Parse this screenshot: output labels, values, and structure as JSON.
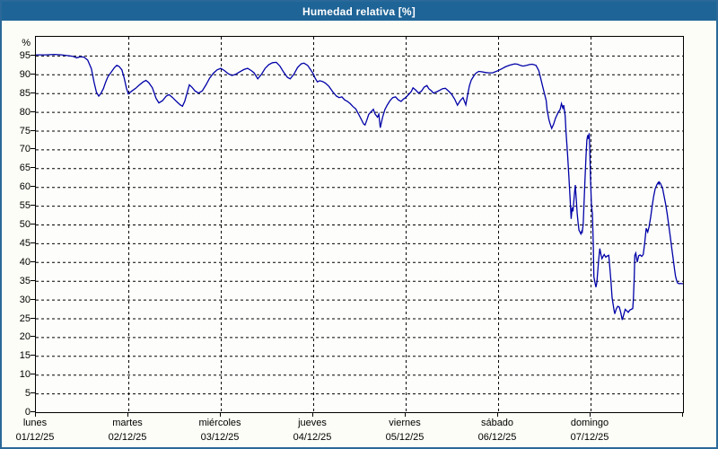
{
  "window": {
    "title": "Humedad relativa [%]"
  },
  "colors": {
    "titlebar_bg": "#1e6497",
    "titlebar_text": "#ffffff",
    "window_border": "#2a6999",
    "window_bg": "#fcfdf6",
    "plot_bg": "#fdfefb",
    "plot_border": "#000000",
    "grid": "#000000",
    "line": "#0000a8",
    "tick_text": "#000000"
  },
  "chart_data": {
    "type": "line",
    "title": "Humedad relativa [%]",
    "ylabel": "%",
    "y_unit_label": "%",
    "ylim": [
      0,
      100
    ],
    "x_days": 7,
    "grid": "dashed",
    "legend": "none",
    "y_ticks": [
      95,
      90,
      85,
      80,
      75,
      70,
      65,
      60,
      55,
      50,
      45,
      40,
      35,
      30,
      25,
      20,
      15,
      10,
      5,
      0
    ],
    "x_ticks": [
      {
        "day": "lunes",
        "date": "01/12/25"
      },
      {
        "day": "martes",
        "date": "02/12/25"
      },
      {
        "day": "miércoles",
        "date": "03/12/25"
      },
      {
        "day": "jueves",
        "date": "04/12/25"
      },
      {
        "day": "viernes",
        "date": "05/12/25"
      },
      {
        "day": "sábado",
        "date": "06/12/25"
      },
      {
        "day": "domingo",
        "date": "07/12/25"
      }
    ],
    "series": [
      {
        "name": "Humedad relativa",
        "x_unit": "days_since_2025-12-01",
        "y_unit": "%",
        "points": [
          [
            0.0,
            95.2
          ],
          [
            0.1,
            95.2
          ],
          [
            0.2,
            95.3
          ],
          [
            0.28,
            95.2
          ],
          [
            0.34,
            95.0
          ],
          [
            0.4,
            94.8
          ],
          [
            0.44,
            94.4
          ],
          [
            0.48,
            94.7
          ],
          [
            0.52,
            94.6
          ],
          [
            0.56,
            93.8
          ],
          [
            0.6,
            91.5
          ],
          [
            0.63,
            87.8
          ],
          [
            0.655,
            85.2
          ],
          [
            0.68,
            84.2
          ],
          [
            0.7,
            84.8
          ],
          [
            0.73,
            86.2
          ],
          [
            0.755,
            88.0
          ],
          [
            0.78,
            89.4
          ],
          [
            0.82,
            90.8
          ],
          [
            0.85,
            91.8
          ],
          [
            0.875,
            92.4
          ],
          [
            0.9,
            92.1
          ],
          [
            0.93,
            91.2
          ],
          [
            0.955,
            89.0
          ],
          [
            0.98,
            86.3
          ],
          [
            1.0,
            84.8
          ],
          [
            1.04,
            85.6
          ],
          [
            1.08,
            86.3
          ],
          [
            1.12,
            87.2
          ],
          [
            1.16,
            88.0
          ],
          [
            1.19,
            88.4
          ],
          [
            1.22,
            87.8
          ],
          [
            1.26,
            86.4
          ],
          [
            1.3,
            83.6
          ],
          [
            1.33,
            82.4
          ],
          [
            1.37,
            83.0
          ],
          [
            1.41,
            84.2
          ],
          [
            1.44,
            84.6
          ],
          [
            1.48,
            83.8
          ],
          [
            1.52,
            82.8
          ],
          [
            1.56,
            81.9
          ],
          [
            1.585,
            81.5
          ],
          [
            1.61,
            82.8
          ],
          [
            1.635,
            85.0
          ],
          [
            1.66,
            87.2
          ],
          [
            1.69,
            86.5
          ],
          [
            1.72,
            85.6
          ],
          [
            1.76,
            85.0
          ],
          [
            1.8,
            85.6
          ],
          [
            1.84,
            87.2
          ],
          [
            1.88,
            89.0
          ],
          [
            1.92,
            90.3
          ],
          [
            1.96,
            91.2
          ],
          [
            2.0,
            91.6
          ],
          [
            2.04,
            91.0
          ],
          [
            2.08,
            90.2
          ],
          [
            2.12,
            89.7
          ],
          [
            2.16,
            90.0
          ],
          [
            2.2,
            90.6
          ],
          [
            2.25,
            91.3
          ],
          [
            2.29,
            91.6
          ],
          [
            2.33,
            91.0
          ],
          [
            2.36,
            90.4
          ],
          [
            2.4,
            88.8
          ],
          [
            2.44,
            90.0
          ],
          [
            2.48,
            91.6
          ],
          [
            2.52,
            92.6
          ],
          [
            2.56,
            93.1
          ],
          [
            2.6,
            93.2
          ],
          [
            2.64,
            92.2
          ],
          [
            2.68,
            90.6
          ],
          [
            2.72,
            89.2
          ],
          [
            2.75,
            88.8
          ],
          [
            2.79,
            90.0
          ],
          [
            2.83,
            91.8
          ],
          [
            2.87,
            92.8
          ],
          [
            2.9,
            93.0
          ],
          [
            2.94,
            92.4
          ],
          [
            2.97,
            91.3
          ],
          [
            3.0,
            90.2
          ],
          [
            3.02,
            89.0
          ],
          [
            3.045,
            88.0
          ],
          [
            3.07,
            88.3
          ],
          [
            3.1,
            88.1
          ],
          [
            3.13,
            87.7
          ],
          [
            3.17,
            86.8
          ],
          [
            3.21,
            85.4
          ],
          [
            3.25,
            84.2
          ],
          [
            3.28,
            83.8
          ],
          [
            3.31,
            84.0
          ],
          [
            3.34,
            83.2
          ],
          [
            3.37,
            82.8
          ],
          [
            3.4,
            82.2
          ],
          [
            3.43,
            81.4
          ],
          [
            3.46,
            80.8
          ],
          [
            3.49,
            79.4
          ],
          [
            3.52,
            78.0
          ],
          [
            3.545,
            76.8
          ],
          [
            3.56,
            76.5
          ],
          [
            3.58,
            77.8
          ],
          [
            3.6,
            79.3
          ],
          [
            3.625,
            80.0
          ],
          [
            3.65,
            80.7
          ],
          [
            3.67,
            79.4
          ],
          [
            3.695,
            78.6
          ],
          [
            3.71,
            79.4
          ],
          [
            3.725,
            75.8
          ],
          [
            3.75,
            78.6
          ],
          [
            3.775,
            80.6
          ],
          [
            3.8,
            81.8
          ],
          [
            3.83,
            83.0
          ],
          [
            3.86,
            83.8
          ],
          [
            3.89,
            84.0
          ],
          [
            3.92,
            83.2
          ],
          [
            3.95,
            82.8
          ],
          [
            3.975,
            83.4
          ],
          [
            4.0,
            83.8
          ],
          [
            4.03,
            84.6
          ],
          [
            4.06,
            85.4
          ],
          [
            4.08,
            86.4
          ],
          [
            4.11,
            85.8
          ],
          [
            4.14,
            85.0
          ],
          [
            4.17,
            85.5
          ],
          [
            4.2,
            86.6
          ],
          [
            4.23,
            87.0
          ],
          [
            4.25,
            86.2
          ],
          [
            4.28,
            85.6
          ],
          [
            4.3,
            85.0
          ],
          [
            4.34,
            85.4
          ],
          [
            4.37,
            85.8
          ],
          [
            4.4,
            86.2
          ],
          [
            4.43,
            86.3
          ],
          [
            4.47,
            85.4
          ],
          [
            4.5,
            84.6
          ],
          [
            4.53,
            83.4
          ],
          [
            4.56,
            81.8
          ],
          [
            4.59,
            83.0
          ],
          [
            4.62,
            83.8
          ],
          [
            4.65,
            81.9
          ],
          [
            4.67,
            84.5
          ],
          [
            4.69,
            87.0
          ],
          [
            4.71,
            88.5
          ],
          [
            4.74,
            89.7
          ],
          [
            4.76,
            90.3
          ],
          [
            4.79,
            90.8
          ],
          [
            4.82,
            90.7
          ],
          [
            4.86,
            90.5
          ],
          [
            4.9,
            90.4
          ],
          [
            4.94,
            90.4
          ],
          [
            4.98,
            90.8
          ],
          [
            5.01,
            91.1
          ],
          [
            5.05,
            91.6
          ],
          [
            5.08,
            92.0
          ],
          [
            5.12,
            92.4
          ],
          [
            5.15,
            92.6
          ],
          [
            5.18,
            92.8
          ],
          [
            5.21,
            92.7
          ],
          [
            5.24,
            92.4
          ],
          [
            5.27,
            92.2
          ],
          [
            5.31,
            92.4
          ],
          [
            5.34,
            92.6
          ],
          [
            5.37,
            92.7
          ],
          [
            5.41,
            92.4
          ],
          [
            5.44,
            91.0
          ],
          [
            5.46,
            89.0
          ],
          [
            5.48,
            87.0
          ],
          [
            5.5,
            85.0
          ],
          [
            5.52,
            83.0
          ],
          [
            5.53,
            80.5
          ],
          [
            5.55,
            78.0
          ],
          [
            5.56,
            77.0
          ],
          [
            5.58,
            75.6
          ],
          [
            5.6,
            76.7
          ],
          [
            5.62,
            78.3
          ],
          [
            5.65,
            79.9
          ],
          [
            5.67,
            80.6
          ],
          [
            5.685,
            82.2
          ],
          [
            5.7,
            81.0
          ],
          [
            5.71,
            81.8
          ],
          [
            5.725,
            79.0
          ],
          [
            5.735,
            74.5
          ],
          [
            5.75,
            69.0
          ],
          [
            5.765,
            63.0
          ],
          [
            5.78,
            56.5
          ],
          [
            5.79,
            51.5
          ],
          [
            5.8,
            54.5
          ],
          [
            5.81,
            53.5
          ],
          [
            5.825,
            58.0
          ],
          [
            5.835,
            60.5
          ],
          [
            5.845,
            57.0
          ],
          [
            5.855,
            53.0
          ],
          [
            5.865,
            50.5
          ],
          [
            5.875,
            48.5
          ],
          [
            5.885,
            48.0
          ],
          [
            5.895,
            47.5
          ],
          [
            5.905,
            48.2
          ],
          [
            5.91,
            48.0
          ],
          [
            5.92,
            50.0
          ],
          [
            5.93,
            56.0
          ],
          [
            5.94,
            62.0
          ],
          [
            5.95,
            68.0
          ],
          [
            5.96,
            72.5
          ],
          [
            5.97,
            73.8
          ],
          [
            5.977,
            72.8
          ],
          [
            5.985,
            74.3
          ],
          [
            5.99,
            71.0
          ],
          [
            6.0,
            62.0
          ],
          [
            6.01,
            55.0
          ],
          [
            6.02,
            52.8
          ],
          [
            6.03,
            44.0
          ],
          [
            6.036,
            36.1
          ],
          [
            6.046,
            34.8
          ],
          [
            6.058,
            33.3
          ],
          [
            6.068,
            34.5
          ],
          [
            6.078,
            37.5
          ],
          [
            6.087,
            40.5
          ],
          [
            6.1,
            43.6
          ],
          [
            6.113,
            42.0
          ],
          [
            6.123,
            40.9
          ],
          [
            6.136,
            41.5
          ],
          [
            6.148,
            42.0
          ],
          [
            6.165,
            41.3
          ],
          [
            6.18,
            41.6
          ],
          [
            6.197,
            41.8
          ],
          [
            6.207,
            39.0
          ],
          [
            6.22,
            35.0
          ],
          [
            6.233,
            30.5
          ],
          [
            6.252,
            27.4
          ],
          [
            6.262,
            26.2
          ],
          [
            6.278,
            27.5
          ],
          [
            6.294,
            28.2
          ],
          [
            6.311,
            28.0
          ],
          [
            6.327,
            26.5
          ],
          [
            6.343,
            24.6
          ],
          [
            6.359,
            26.0
          ],
          [
            6.375,
            27.4
          ],
          [
            6.391,
            27.0
          ],
          [
            6.408,
            26.6
          ],
          [
            6.424,
            27.2
          ],
          [
            6.44,
            27.4
          ],
          [
            6.456,
            27.6
          ],
          [
            6.463,
            30.0
          ],
          [
            6.473,
            36.0
          ],
          [
            6.479,
            41.8
          ],
          [
            6.489,
            42.4
          ],
          [
            6.505,
            40.0
          ],
          [
            6.521,
            41.7
          ],
          [
            6.537,
            41.9
          ],
          [
            6.553,
            41.5
          ],
          [
            6.57,
            42.0
          ],
          [
            6.585,
            45.0
          ],
          [
            6.602,
            49.0
          ],
          [
            6.618,
            48.0
          ],
          [
            6.634,
            49.5
          ],
          [
            6.65,
            52.0
          ],
          [
            6.667,
            55.0
          ],
          [
            6.683,
            57.5
          ],
          [
            6.699,
            59.5
          ],
          [
            6.716,
            60.5
          ],
          [
            6.732,
            61.2
          ],
          [
            6.74,
            60.8
          ],
          [
            6.745,
            61.3
          ],
          [
            6.757,
            60.9
          ],
          [
            6.78,
            59.6
          ],
          [
            6.796,
            57.5
          ],
          [
            6.812,
            55.5
          ],
          [
            6.828,
            53.0
          ],
          [
            6.845,
            50.0
          ],
          [
            6.861,
            47.0
          ],
          [
            6.877,
            44.0
          ],
          [
            6.893,
            41.0
          ],
          [
            6.909,
            38.0
          ],
          [
            6.919,
            36.2
          ],
          [
            6.932,
            35.0
          ],
          [
            6.942,
            34.4
          ],
          [
            6.958,
            34.2
          ],
          [
            6.974,
            34.3
          ],
          [
            7.0,
            34.2
          ]
        ]
      }
    ]
  }
}
